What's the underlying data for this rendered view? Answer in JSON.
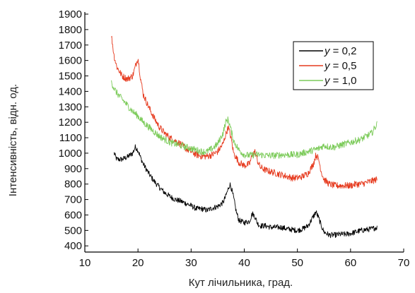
{
  "chart_data": {
    "type": "line",
    "xlabel": "Кут лічильника, град.",
    "ylabel": "Інтенсивність, відн. од.",
    "xlim": [
      10,
      70
    ],
    "ylim": [
      360,
      1900
    ],
    "x_ticks": [
      "10",
      "20",
      "30",
      "40",
      "50",
      "60",
      "70"
    ],
    "y_ticks": [
      "400",
      "500",
      "600",
      "700",
      "800",
      "900",
      "1000",
      "1100",
      "1200",
      "1300",
      "1400",
      "1500",
      "1600",
      "1700",
      "1800",
      "1900"
    ],
    "grid": false,
    "legend_position": "top-right",
    "series": [
      {
        "name": "y = 0,2",
        "legend_var": "y",
        "legend_rest": " = 0,2",
        "color": "#000000",
        "x": [
          15.5,
          16,
          17,
          18,
          19,
          19.5,
          20,
          20.5,
          21,
          22,
          23,
          24,
          25,
          26,
          27,
          28,
          29,
          30,
          31,
          32,
          33,
          34,
          35,
          36,
          36.5,
          37,
          37.3,
          37.6,
          38,
          38.5,
          39,
          40,
          41,
          41.5,
          42,
          42.5,
          43,
          44,
          45,
          46,
          47,
          48,
          49,
          50,
          51,
          52,
          53,
          53.5,
          54,
          54.5,
          55,
          56,
          57,
          58,
          59,
          60,
          61,
          62,
          63,
          64,
          65
        ],
        "values": [
          1000,
          960,
          960,
          975,
          1000,
          1040,
          1020,
          970,
          930,
          870,
          820,
          780,
          745,
          720,
          700,
          690,
          675,
          660,
          640,
          640,
          630,
          645,
          655,
          680,
          720,
          770,
          800,
          770,
          710,
          620,
          565,
          550,
          560,
          610,
          590,
          545,
          530,
          530,
          520,
          520,
          520,
          510,
          505,
          500,
          510,
          530,
          590,
          620,
          580,
          530,
          490,
          470,
          470,
          475,
          475,
          480,
          490,
          500,
          505,
          510,
          520
        ]
      },
      {
        "name": "y = 0,5",
        "legend_var": "y",
        "legend_rest": " = 0,5",
        "color": "#e63a1e",
        "x": [
          15,
          15.5,
          16,
          17,
          18,
          19,
          19.5,
          20,
          20.5,
          21,
          22,
          23,
          24,
          25,
          26,
          27,
          28,
          29,
          30,
          31,
          32,
          33,
          34,
          35,
          36,
          36.5,
          37,
          37.5,
          38,
          39,
          40,
          41,
          41.5,
          42,
          42.5,
          43,
          44,
          45,
          46,
          47,
          48,
          49,
          50,
          51,
          52,
          53,
          53.5,
          54,
          54.5,
          55,
          56,
          57,
          58,
          59,
          60,
          61,
          62,
          63,
          64,
          65
        ],
        "values": [
          1760,
          1630,
          1560,
          1500,
          1480,
          1500,
          1560,
          1620,
          1480,
          1380,
          1300,
          1230,
          1170,
          1130,
          1100,
          1080,
          1060,
          1030,
          1010,
          990,
          980,
          980,
          990,
          1010,
          1060,
          1120,
          1170,
          1100,
          1000,
          940,
          920,
          930,
          990,
          1010,
          950,
          910,
          890,
          880,
          870,
          860,
          850,
          840,
          840,
          850,
          870,
          930,
          990,
          960,
          880,
          830,
          800,
          790,
          790,
          790,
          790,
          800,
          800,
          810,
          820,
          830
        ]
      },
      {
        "name": "y = 1,0",
        "legend_var": "y",
        "legend_rest": " = 1,0",
        "color": "#7ccb5a",
        "x": [
          15,
          15.5,
          16,
          17,
          18,
          19,
          20,
          21,
          22,
          23,
          24,
          25,
          26,
          27,
          28,
          29,
          30,
          31,
          32,
          33,
          34,
          35,
          36,
          36.5,
          37,
          37.5,
          38,
          39,
          40,
          41,
          42,
          43,
          44,
          45,
          46,
          47,
          48,
          49,
          50,
          51,
          52,
          53,
          54,
          55,
          56,
          57,
          58,
          59,
          60,
          61,
          62,
          63,
          64,
          64.5,
          65
        ],
        "values": [
          1460,
          1420,
          1390,
          1350,
          1310,
          1270,
          1240,
          1200,
          1170,
          1140,
          1110,
          1090,
          1070,
          1060,
          1050,
          1040,
          1030,
          1020,
          1010,
          1010,
          1030,
          1060,
          1130,
          1200,
          1220,
          1150,
          1080,
          1020,
          990,
          985,
          990,
          990,
          985,
          985,
          985,
          990,
          990,
          990,
          990,
          1000,
          1010,
          1020,
          1030,
          1050,
          1040,
          1040,
          1050,
          1060,
          1070,
          1080,
          1090,
          1110,
          1130,
          1160,
          1190
        ]
      }
    ]
  }
}
